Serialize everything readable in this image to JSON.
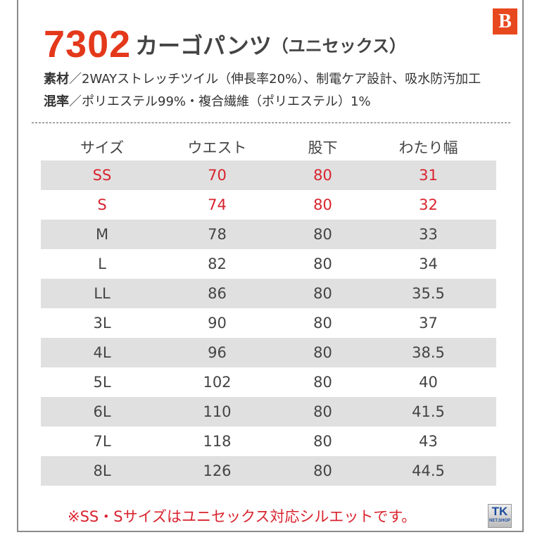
{
  "brand_logo": "B",
  "product": {
    "number": "7302",
    "name": "カーゴパンツ",
    "subtitle": "（ユニセックス）"
  },
  "specs": [
    {
      "label": "素材",
      "text": "／2WAYストレッチツイル（伸長率20%）、制電ケア設計、吸水防汚加工"
    },
    {
      "label": "混率",
      "text": "／ポリエステル99%・複合繊維（ポリエステル）1%"
    }
  ],
  "table": {
    "headers": [
      "サイズ",
      "ウエスト",
      "股下",
      "わたり幅"
    ],
    "rows": [
      [
        "SS",
        "70",
        "80",
        "31"
      ],
      [
        "S",
        "74",
        "80",
        "32"
      ],
      [
        "M",
        "78",
        "80",
        "33"
      ],
      [
        "L",
        "82",
        "80",
        "34"
      ],
      [
        "LL",
        "86",
        "80",
        "35.5"
      ],
      [
        "3L",
        "90",
        "80",
        "37"
      ],
      [
        "4L",
        "96",
        "80",
        "38.5"
      ],
      [
        "5L",
        "102",
        "80",
        "40"
      ],
      [
        "6L",
        "110",
        "80",
        "41.5"
      ],
      [
        "7L",
        "118",
        "80",
        "43"
      ],
      [
        "8L",
        "126",
        "80",
        "44.5"
      ]
    ],
    "highlight_color": "#d9232e"
  },
  "note": "※SS・Sサイズはユニセックス対応シルエットです。",
  "shop_logo": {
    "top": "TK",
    "bottom": "NET.SHOP"
  }
}
